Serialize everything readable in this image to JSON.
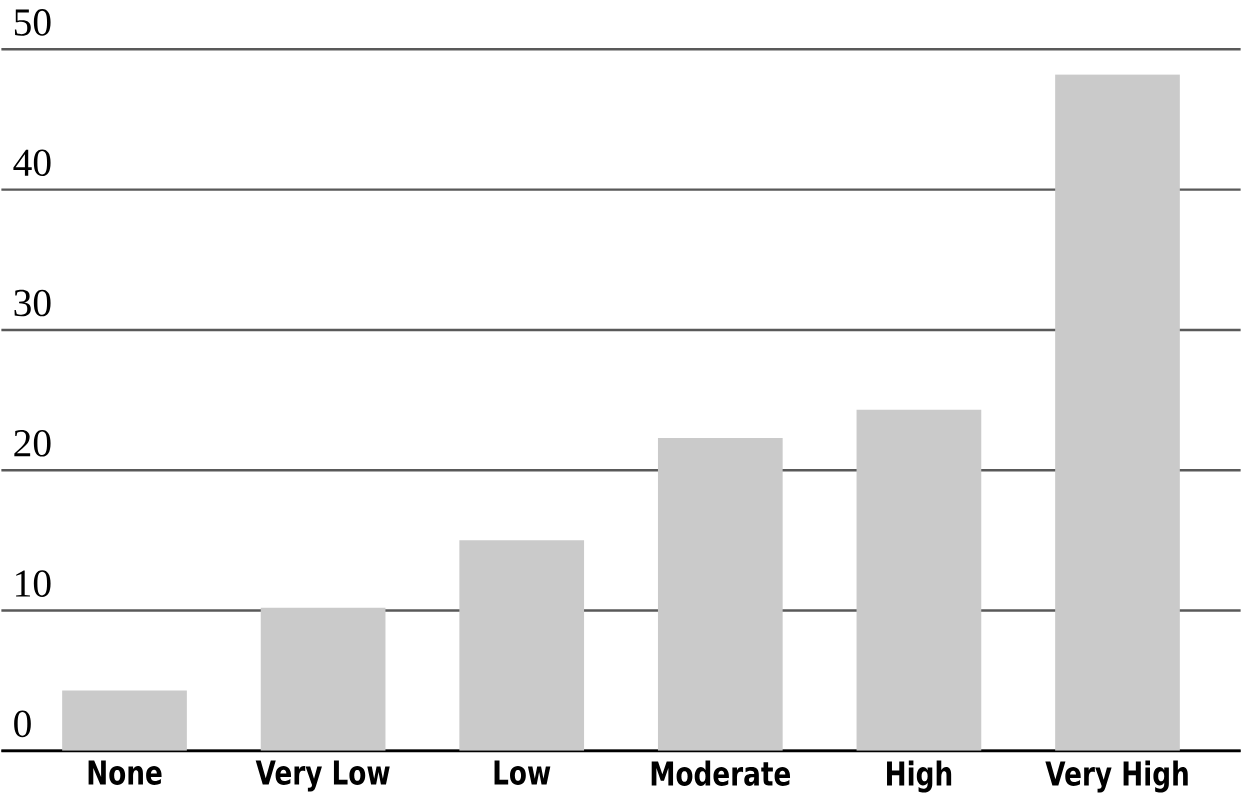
{
  "chart_data": {
    "type": "bar",
    "categories": [
      "None",
      "Very Low",
      "Low",
      "Moderate",
      "High",
      "Very High"
    ],
    "values": [
      4.3,
      10.2,
      15.0,
      22.3,
      24.3,
      48.2
    ],
    "color": "#cacaca",
    "ylim": [
      0,
      50
    ],
    "yticks": [
      0,
      10,
      20,
      30,
      40,
      50
    ],
    "grid": "y"
  }
}
